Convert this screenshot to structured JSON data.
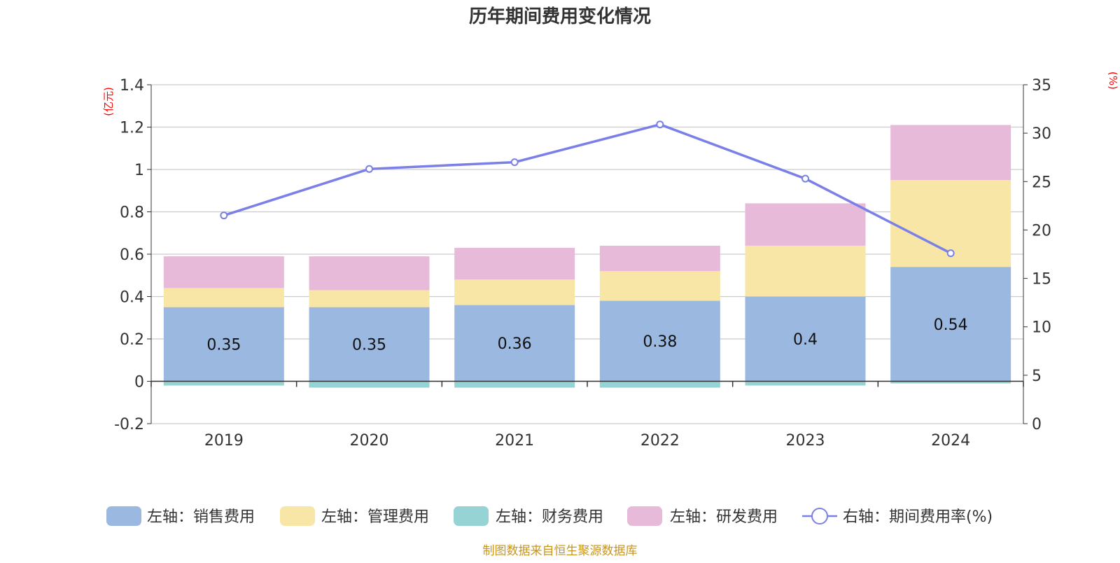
{
  "chart_data": {
    "type": "bar",
    "title": "历年期间费用变化情况",
    "y_left_unit": "(亿元)",
    "y_right_unit": "(%)",
    "categories": [
      "2019",
      "2020",
      "2021",
      "2022",
      "2023",
      "2024"
    ],
    "ylim_left": [
      -0.2,
      1.4
    ],
    "yticks_left": [
      "-0.2",
      "0",
      "0.2",
      "0.4",
      "0.6",
      "0.8",
      "1",
      "1.2",
      "1.4"
    ],
    "ylim_right": [
      0,
      35
    ],
    "yticks_right": [
      "0",
      "5",
      "10",
      "15",
      "20",
      "25",
      "30",
      "35"
    ],
    "grid": true,
    "stacked": true,
    "legend_position": "bottom",
    "series": [
      {
        "name": "左轴：销售费用",
        "axis": "left",
        "color": "#9bb8e0",
        "values": [
          0.35,
          0.35,
          0.36,
          0.38,
          0.4,
          0.54
        ],
        "labels": [
          "0.35",
          "0.35",
          "0.36",
          "0.38",
          "0.4",
          "0.54"
        ]
      },
      {
        "name": "左轴：管理费用",
        "axis": "left",
        "color": "#f7e6a6",
        "values": [
          0.09,
          0.08,
          0.12,
          0.14,
          0.24,
          0.41
        ]
      },
      {
        "name": "左轴：财务费用",
        "axis": "left",
        "color": "#95d3d4",
        "values": [
          -0.02,
          -0.03,
          -0.03,
          -0.03,
          -0.02,
          -0.01
        ]
      },
      {
        "name": "左轴：研发费用",
        "axis": "left",
        "color": "#e8bad9",
        "values": [
          0.15,
          0.16,
          0.15,
          0.12,
          0.2,
          0.26
        ]
      },
      {
        "name": "右轴：期间费用率(%)",
        "axis": "right",
        "type": "line",
        "color": "#7b7fe8",
        "values": [
          21.5,
          26.3,
          27.0,
          30.9,
          25.3,
          17.6
        ]
      }
    ]
  },
  "footer": {
    "source": "制图数据来自恒生聚源数据库"
  }
}
